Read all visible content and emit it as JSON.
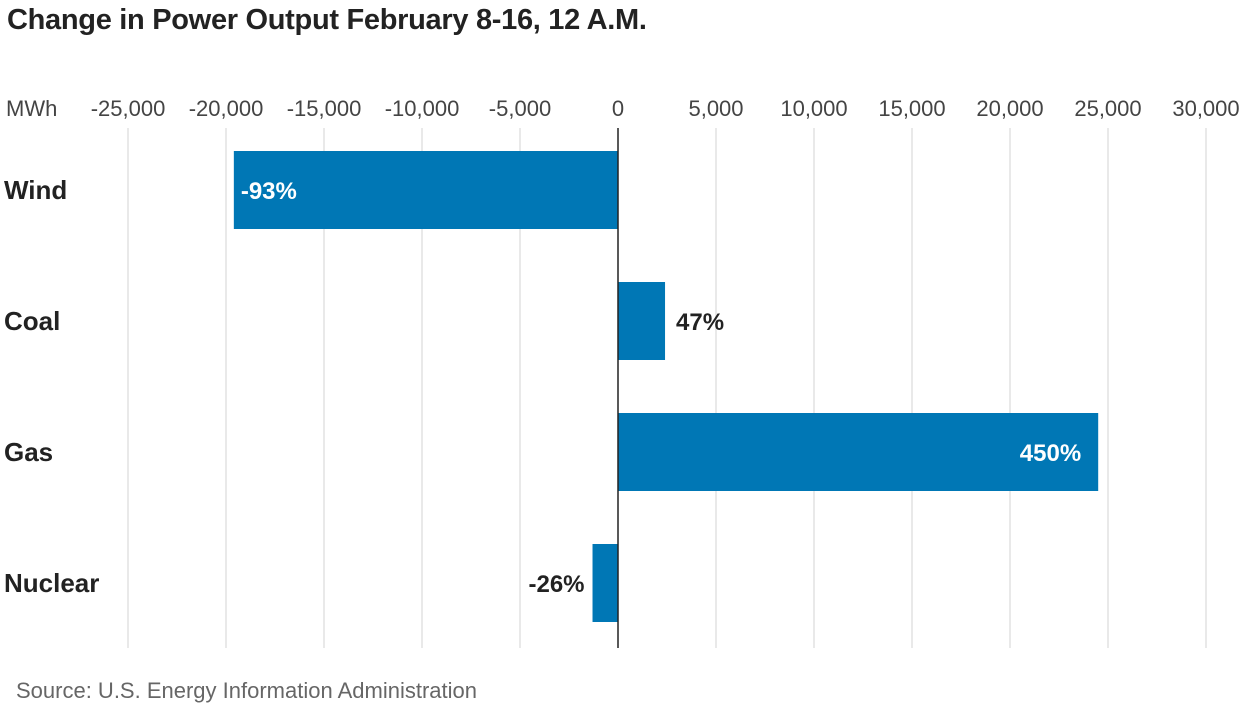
{
  "chart_data": {
    "type": "bar",
    "orientation": "horizontal",
    "title": "Change in Power Output February 8-16, 12 A.M.",
    "unit_label": "MWh",
    "categories": [
      "Wind",
      "Coal",
      "Gas",
      "Nuclear"
    ],
    "values": [
      -19600,
      2400,
      24500,
      -1300
    ],
    "data_labels": [
      "-93%",
      "47%",
      "450%",
      "-26%"
    ],
    "xlim": [
      -25000,
      30000
    ],
    "xticks": [
      -25000,
      -20000,
      -15000,
      -10000,
      -5000,
      0,
      5000,
      10000,
      15000,
      20000,
      25000,
      30000
    ],
    "xtick_labels": [
      "-25,000",
      "-20,000",
      "-15,000",
      "-10,000",
      "-5,000",
      "0",
      "5,000",
      "10,000",
      "15,000",
      "20,000",
      "25,000",
      "30,000"
    ],
    "gridlines": true,
    "bar_color": "#0077b5",
    "source": "Source: U.S. Energy Information Administration"
  }
}
